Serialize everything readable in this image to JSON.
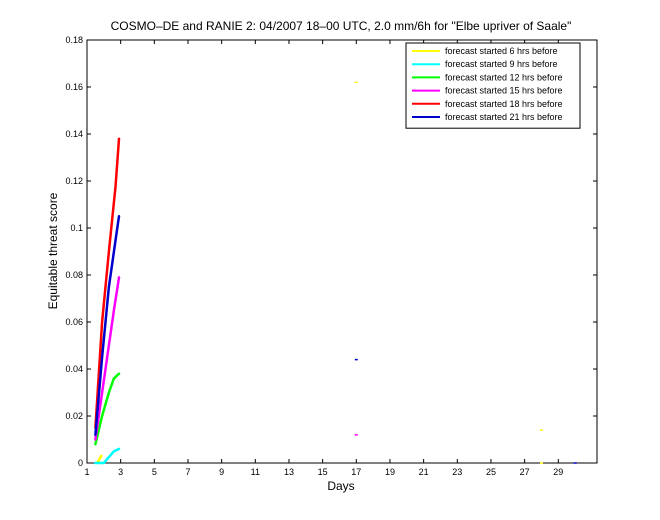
{
  "chart_data": {
    "type": "line",
    "title": "COSMO–DE and RANIE 2: 04/2007 18–00 UTC, 2.0 mm/6h for \"Elbe upriver of Saale\"",
    "xlabel": "Days",
    "ylabel": "Equitable threat score",
    "xlim": [
      1,
      31.3
    ],
    "ylim": [
      0,
      0.18
    ],
    "x_ticks": [
      1,
      3,
      5,
      7,
      9,
      11,
      13,
      15,
      17,
      19,
      21,
      23,
      25,
      27,
      29
    ],
    "y_ticks": [
      0,
      0.02,
      0.04,
      0.06,
      0.08,
      0.1,
      0.12,
      0.14,
      0.16,
      0.18
    ],
    "y_tick_labels": [
      "0",
      "0.02",
      "0.04",
      "0.06",
      "0.08",
      "0.1",
      "0.12",
      "0.14",
      "0.16",
      "0.18"
    ],
    "grid": false,
    "legend_position": "top-right",
    "series": [
      {
        "name": "forecast started 6 hrs before",
        "color": "#ffff00",
        "segments": [
          [
            [
              1.6,
              0.0
            ],
            [
              1.85,
              0.003
            ]
          ],
          [
            [
              17.0,
              0.162
            ]
          ],
          [
            [
              28.0,
              0.014
            ]
          ],
          [
            [
              28.0,
              0.0
            ]
          ]
        ]
      },
      {
        "name": "forecast started 9 hrs before",
        "color": "#00ffff",
        "segments": [
          [
            [
              1.5,
              0.0
            ],
            [
              2.0,
              0.0
            ],
            [
              2.6,
              0.005
            ],
            [
              2.9,
              0.006
            ]
          ]
        ]
      },
      {
        "name": "forecast started 12 hrs before",
        "color": "#00ff00",
        "segments": [
          [
            [
              1.5,
              0.008
            ],
            [
              1.9,
              0.02
            ],
            [
              2.3,
              0.03
            ],
            [
              2.6,
              0.036
            ],
            [
              2.9,
              0.038
            ]
          ]
        ]
      },
      {
        "name": "forecast started 15 hrs before",
        "color": "#ff00ff",
        "segments": [
          [
            [
              1.5,
              0.01
            ],
            [
              2.1,
              0.04
            ],
            [
              2.6,
              0.065
            ],
            [
              2.9,
              0.079
            ]
          ],
          [
            [
              17.0,
              0.012
            ]
          ]
        ]
      },
      {
        "name": "forecast started 18 hrs before",
        "color": "#ff0000",
        "segments": [
          [
            [
              1.5,
              0.015
            ],
            [
              1.9,
              0.06
            ],
            [
              2.3,
              0.09
            ],
            [
              2.7,
              0.118
            ],
            [
              2.9,
              0.138
            ]
          ]
        ]
      },
      {
        "name": "forecast started 21 hrs before",
        "color": "#0000cc",
        "segments": [
          [
            [
              1.5,
              0.012
            ],
            [
              1.9,
              0.045
            ],
            [
              2.3,
              0.075
            ],
            [
              2.7,
              0.095
            ],
            [
              2.9,
              0.105
            ]
          ],
          [
            [
              17.0,
              0.044
            ]
          ],
          [
            [
              30.0,
              0.0
            ]
          ]
        ]
      }
    ]
  }
}
